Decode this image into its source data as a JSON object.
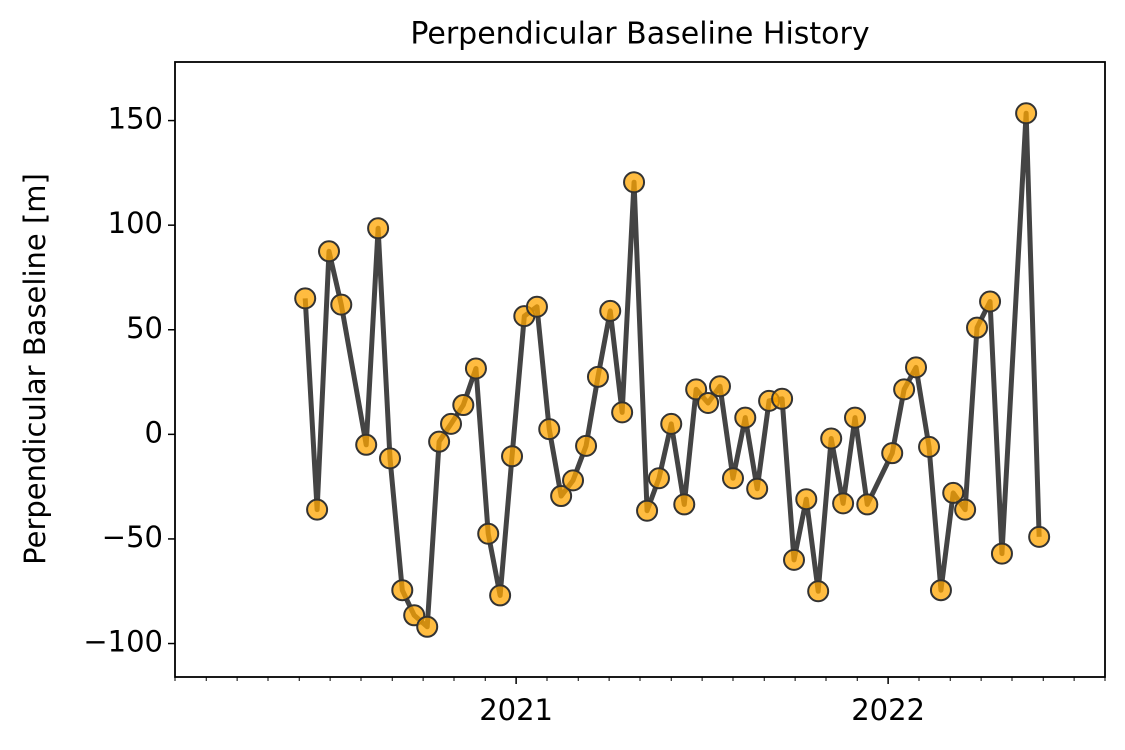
{
  "chart_data": {
    "type": "line",
    "title": "Perpendicular Baseline History",
    "y_label": "Perpendicular Baseline [m]",
    "x": [
      2020.433,
      2020.465,
      2020.497,
      2020.53,
      2020.597,
      2020.629,
      2020.661,
      2020.694,
      2020.726,
      2020.761,
      2020.793,
      2020.825,
      2020.858,
      2020.892,
      2020.925,
      2020.957,
      2020.989,
      2021.022,
      2021.056,
      2021.089,
      2021.121,
      2021.153,
      2021.188,
      2021.22,
      2021.253,
      2021.285,
      2021.317,
      2021.352,
      2021.384,
      2021.417,
      2021.452,
      2021.484,
      2021.516,
      2021.548,
      2021.583,
      2021.616,
      2021.648,
      2021.68,
      2021.715,
      2021.747,
      2021.78,
      2021.812,
      2021.847,
      2021.879,
      2021.911,
      2021.944,
      2022.011,
      2022.043,
      2022.075,
      2022.11,
      2022.142,
      2022.175,
      2022.207,
      2022.239,
      2022.274,
      2022.306,
      2022.371,
      2022.406
    ],
    "series": [
      {
        "color": "#ffa500",
        "line_color": "#444444",
        "values": [
          65,
          -36,
          87.5,
          62,
          -5,
          98.5,
          -11.5,
          -74.5,
          -86.5,
          -92,
          -3.5,
          5,
          14,
          31.5,
          -47.5,
          -77,
          -10.5,
          56.5,
          61,
          2.5,
          -29.5,
          -22,
          -5.5,
          27.5,
          59,
          10.5,
          120.5,
          -36.5,
          -21,
          5,
          -33.5,
          21.5,
          15,
          23,
          -21,
          8,
          -26,
          16,
          17,
          -60,
          -31,
          -75,
          -2,
          -33,
          8,
          -33.5,
          -9,
          21.5,
          32,
          -6,
          -74.5,
          -28,
          -36,
          51,
          63.5,
          -57,
          153.5,
          -49
        ]
      }
    ],
    "xlim": [
      2020.083,
      2022.583
    ],
    "xticks": [
      2021,
      2022
    ],
    "xminorticks": [
      2020.083,
      2020.167,
      2020.25,
      2020.333,
      2020.417,
      2020.5,
      2020.583,
      2020.667,
      2020.75,
      2020.833,
      2020.917,
      2021.083,
      2021.167,
      2021.25,
      2021.333,
      2021.417,
      2021.5,
      2021.583,
      2021.667,
      2021.75,
      2021.833,
      2021.917,
      2022.083,
      2022.167,
      2022.25,
      2022.333,
      2022.417,
      2022.5,
      2022.583
    ],
    "ylim": [
      -116,
      178
    ],
    "yticks": [
      {
        "value": -100,
        "label": "−100"
      },
      {
        "value": -50,
        "label": "−50"
      },
      0,
      50,
      100,
      150
    ],
    "grid": false
  }
}
